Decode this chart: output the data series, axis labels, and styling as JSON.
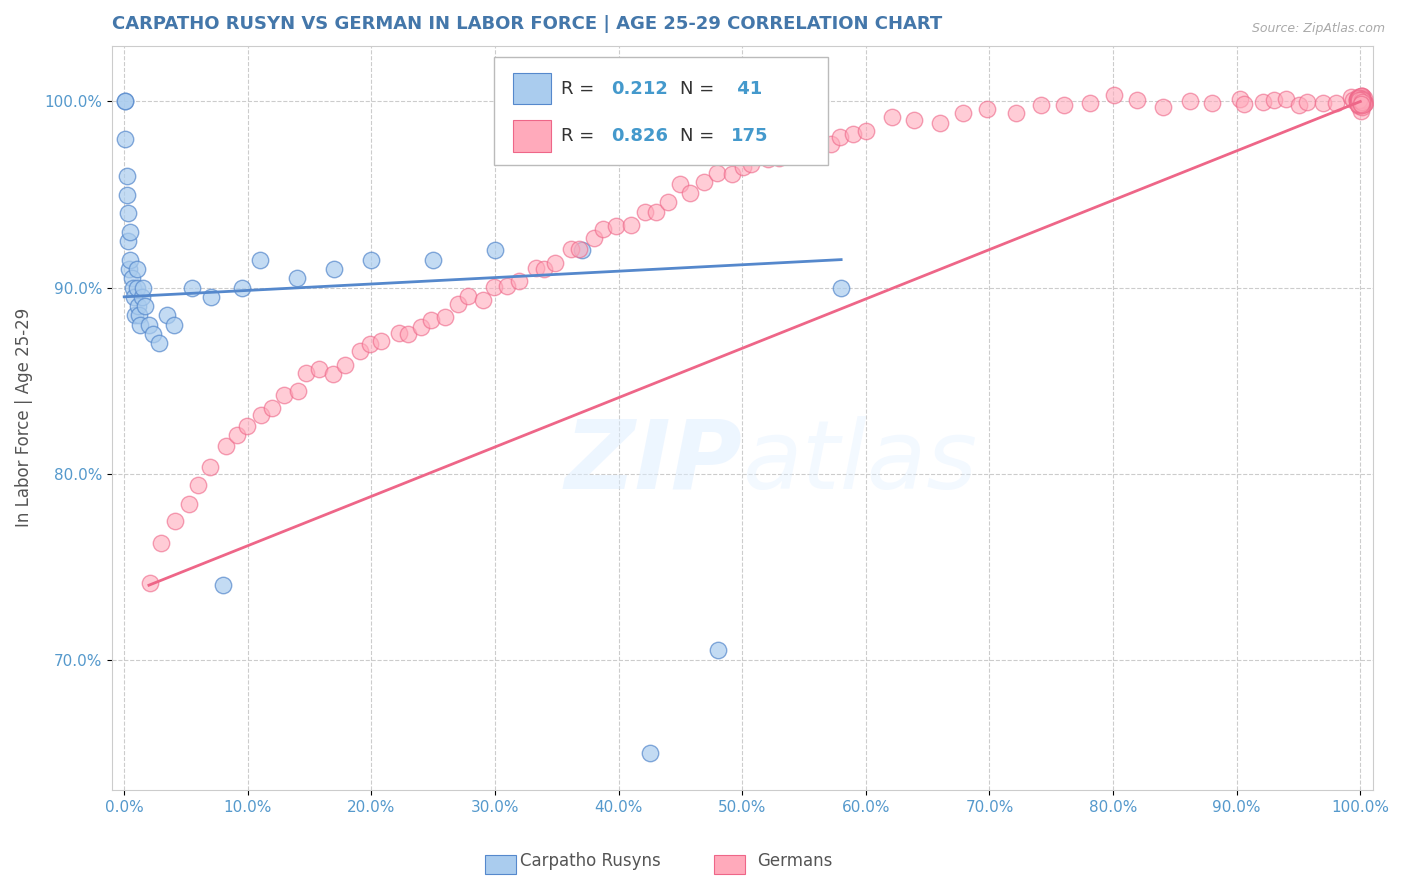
{
  "title": "CARPATHO RUSYN VS GERMAN IN LABOR FORCE | AGE 25-29 CORRELATION CHART",
  "source": "Source: ZipAtlas.com",
  "ylabel_label": "In Labor Force | Age 25-29",
  "x_tick_labels": [
    "0.0%",
    "10.0%",
    "20.0%",
    "30.0%",
    "40.0%",
    "50.0%",
    "60.0%",
    "70.0%",
    "80.0%",
    "90.0%",
    "100.0%"
  ],
  "x_tick_values": [
    0,
    10,
    20,
    30,
    40,
    50,
    60,
    70,
    80,
    90,
    100
  ],
  "y_tick_labels": [
    "70.0%",
    "80.0%",
    "90.0%",
    "100.0%"
  ],
  "y_tick_values": [
    70,
    80,
    90,
    100
  ],
  "ylim": [
    63,
    103
  ],
  "xlim": [
    -1,
    101
  ],
  "blue_R": 0.212,
  "blue_N": 41,
  "pink_R": 0.826,
  "pink_N": 175,
  "blue_color": "#AACCEE",
  "pink_color": "#FFAABB",
  "blue_line_color": "#5588CC",
  "pink_line_color": "#EE6688",
  "legend_label_blue": "Carpatho Rusyns",
  "legend_label_pink": "Germans",
  "watermark": "ZIPatlas",
  "background_color": "#FFFFFF",
  "grid_color": "#CCCCCC",
  "title_color": "#4477AA",
  "source_color": "#AAAAAA",
  "blue_x": [
    0.1,
    0.1,
    0.1,
    0.2,
    0.2,
    0.3,
    0.3,
    0.4,
    0.5,
    0.5,
    0.6,
    0.7,
    0.8,
    0.9,
    1.0,
    1.0,
    1.1,
    1.2,
    1.3,
    1.4,
    1.5,
    1.7,
    2.0,
    2.3,
    2.8,
    3.5,
    4.0,
    5.5,
    7.0,
    8.0,
    9.5,
    11.0,
    14.0,
    17.0,
    20.0,
    25.0,
    30.0,
    37.0,
    42.5,
    48.0,
    58.0
  ],
  "blue_y": [
    100.0,
    100.0,
    98.0,
    96.0,
    95.0,
    94.0,
    92.5,
    91.0,
    93.0,
    91.5,
    90.5,
    90.0,
    89.5,
    88.5,
    91.0,
    90.0,
    89.0,
    88.5,
    88.0,
    89.5,
    90.0,
    89.0,
    88.0,
    87.5,
    87.0,
    88.5,
    88.0,
    90.0,
    89.5,
    74.0,
    90.0,
    91.5,
    90.5,
    91.0,
    91.5,
    91.5,
    92.0,
    92.0,
    65.0,
    70.5,
    90.0
  ],
  "pink_x": [
    2.0,
    3.0,
    4.0,
    5.0,
    6.0,
    7.0,
    8.0,
    9.0,
    10.0,
    11.0,
    12.0,
    13.0,
    14.0,
    15.0,
    16.0,
    17.0,
    18.0,
    19.0,
    20.0,
    21.0,
    22.0,
    23.0,
    24.0,
    25.0,
    26.0,
    27.0,
    28.0,
    29.0,
    30.0,
    31.0,
    32.0,
    33.0,
    34.0,
    35.0,
    36.0,
    37.0,
    38.0,
    39.0,
    40.0,
    41.0,
    42.0,
    43.0,
    44.0,
    45.0,
    46.0,
    47.0,
    48.0,
    49.0,
    50.0,
    51.0,
    52.0,
    53.0,
    54.0,
    55.0,
    56.0,
    57.0,
    58.0,
    59.0,
    60.0,
    62.0,
    64.0,
    66.0,
    68.0,
    70.0,
    72.0,
    74.0,
    76.0,
    78.0,
    80.0,
    82.0,
    84.0,
    86.0,
    88.0,
    90.0,
    91.0,
    92.0,
    93.0,
    94.0,
    95.0,
    96.0,
    97.0,
    98.0,
    99.0,
    99.5,
    100.0,
    100.0,
    100.0,
    100.0,
    100.0,
    100.0,
    100.0,
    100.0,
    100.0,
    100.0,
    100.0,
    100.0,
    100.0,
    100.0,
    100.0,
    100.0,
    100.0,
    100.0,
    100.0,
    100.0,
    100.0,
    100.0,
    100.0,
    100.0,
    100.0,
    100.0,
    100.0,
    100.0,
    100.0,
    100.0,
    100.0,
    100.0,
    100.0,
    100.0,
    100.0,
    100.0,
    100.0,
    100.0,
    100.0,
    100.0,
    100.0,
    100.0,
    100.0,
    100.0,
    100.0,
    100.0,
    100.0,
    100.0,
    100.0,
    100.0,
    100.0,
    100.0,
    100.0,
    100.0,
    100.0,
    100.0,
    100.0,
    100.0,
    100.0,
    100.0,
    100.0,
    100.0,
    100.0,
    100.0,
    100.0,
    100.0,
    100.0,
    100.0,
    100.0,
    100.0,
    100.0,
    100.0,
    100.0,
    100.0,
    100.0,
    100.0,
    100.0,
    100.0,
    100.0,
    100.0,
    100.0,
    100.0
  ],
  "pink_y": [
    74.0,
    76.0,
    77.5,
    78.5,
    79.5,
    80.5,
    81.5,
    82.0,
    82.5,
    83.0,
    83.5,
    84.0,
    84.5,
    85.0,
    85.5,
    85.5,
    86.0,
    86.5,
    87.0,
    87.0,
    87.5,
    87.5,
    88.0,
    88.5,
    88.5,
    89.0,
    89.5,
    89.5,
    90.0,
    90.0,
    90.5,
    91.0,
    91.0,
    91.5,
    92.0,
    92.0,
    92.5,
    93.0,
    93.5,
    93.5,
    94.0,
    94.0,
    94.5,
    95.0,
    95.0,
    95.5,
    96.0,
    96.0,
    96.5,
    96.5,
    97.0,
    97.0,
    97.5,
    97.5,
    98.0,
    98.0,
    98.0,
    98.5,
    98.5,
    99.0,
    99.0,
    99.0,
    99.5,
    99.5,
    99.5,
    99.8,
    99.8,
    100.0,
    100.0,
    100.0,
    100.0,
    100.0,
    100.0,
    100.0,
    100.0,
    100.0,
    100.0,
    100.0,
    100.0,
    100.0,
    100.0,
    100.0,
    100.0,
    100.0,
    100.0,
    100.0,
    100.0,
    100.0,
    100.0,
    100.0,
    100.0,
    100.0,
    100.0,
    100.0,
    100.0,
    100.0,
    100.0,
    100.0,
    100.0,
    100.0,
    100.0,
    100.0,
    100.0,
    100.0,
    100.0,
    100.0,
    100.0,
    100.0,
    100.0,
    100.0,
    100.0,
    100.0,
    100.0,
    100.0,
    100.0,
    100.0,
    100.0,
    100.0,
    100.0,
    100.0,
    100.0,
    100.0,
    100.0,
    100.0,
    100.0,
    100.0,
    100.0,
    100.0,
    100.0,
    100.0,
    100.0,
    100.0,
    100.0,
    100.0,
    100.0,
    100.0,
    100.0,
    100.0,
    100.0,
    100.0,
    100.0,
    100.0,
    100.0,
    100.0,
    100.0,
    100.0,
    100.0,
    100.0,
    100.0,
    100.0,
    100.0,
    100.0,
    100.0,
    100.0,
    100.0,
    100.0,
    100.0,
    100.0,
    100.0,
    100.0,
    100.0,
    100.0,
    100.0,
    100.0,
    100.0,
    100.0
  ],
  "blue_line_x0": 0.0,
  "blue_line_x1": 58.0,
  "blue_line_y0": 89.5,
  "blue_line_y1": 91.5,
  "pink_line_x0": 2.0,
  "pink_line_x1": 100.0,
  "pink_line_y0": 74.0,
  "pink_line_y1": 100.0
}
